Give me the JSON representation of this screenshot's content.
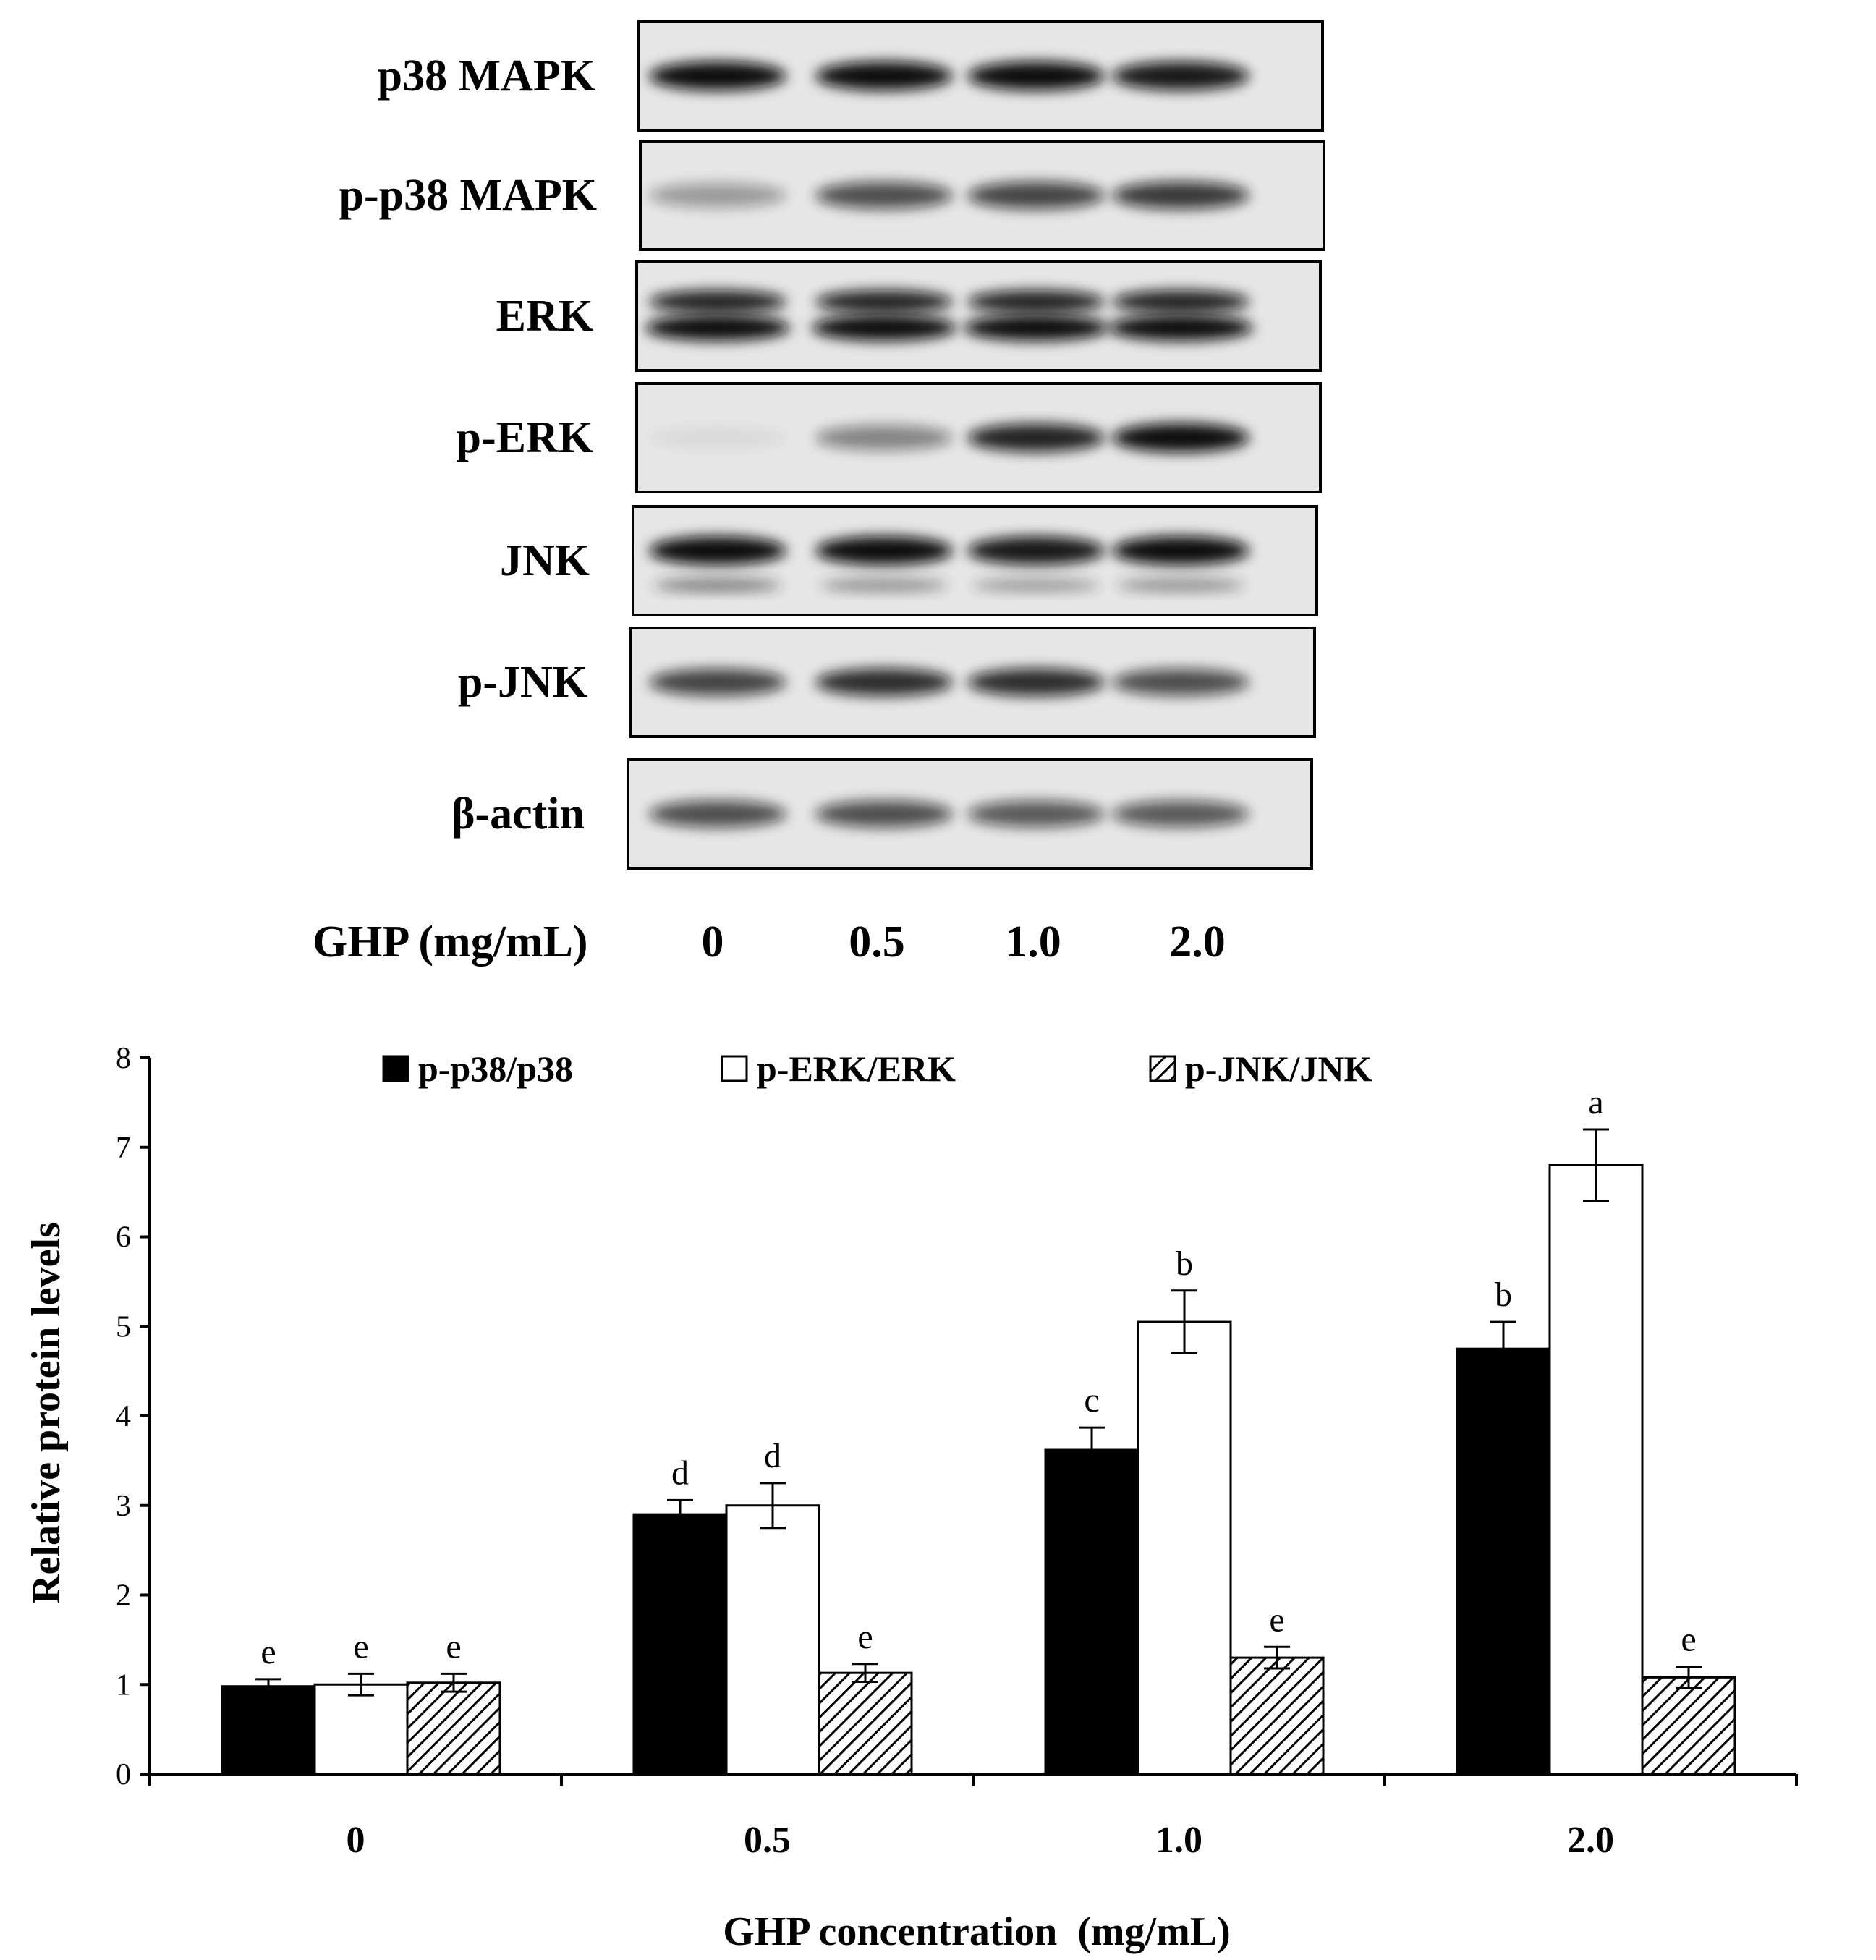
{
  "blot": {
    "rows": [
      {
        "label": "p38 MAPK",
        "bands": [
          1.0,
          1.0,
          1.0,
          0.95
        ],
        "double": false,
        "lower": null
      },
      {
        "label": "p-p38 MAPK",
        "bands": [
          0.35,
          0.7,
          0.75,
          0.8
        ],
        "double": false,
        "lower": null
      },
      {
        "label": "ERK",
        "bands": [
          1.0,
          1.0,
          1.0,
          1.0
        ],
        "double": true,
        "lower": null
      },
      {
        "label": "p-ERK",
        "bands": [
          0.05,
          0.45,
          0.9,
          1.0
        ],
        "double": false,
        "lower": null
      },
      {
        "label": "JNK",
        "bands": [
          1.0,
          1.0,
          0.95,
          1.0
        ],
        "double": false,
        "lower": [
          0.55,
          0.45,
          0.4,
          0.45
        ]
      },
      {
        "label": "p-JNK",
        "bands": [
          0.75,
          0.85,
          0.85,
          0.7
        ],
        "double": false,
        "lower": null
      },
      {
        "label": "β-actin",
        "bands": [
          0.7,
          0.7,
          0.65,
          0.65
        ],
        "double": false,
        "lower": null
      }
    ],
    "lane_header": "GHP (mg/mL)",
    "lanes": [
      "0",
      "0.5",
      "1.0",
      "2.0"
    ]
  },
  "chart_data": {
    "type": "bar",
    "categories": [
      "0",
      "0.5",
      "1.0",
      "2.0"
    ],
    "xlabel": "GHP concentration  (mg/mL)",
    "ylabel": "Relative protein levels",
    "ylim": [
      0,
      8
    ],
    "yticks": [
      "0",
      "1",
      "2",
      "3",
      "4",
      "5",
      "6",
      "7",
      "8"
    ],
    "legend_position": "top",
    "series": [
      {
        "name": "p-p38/p38",
        "fill": "#000000",
        "pattern": "solid",
        "values": [
          0.98,
          2.9,
          3.62,
          4.75
        ],
        "errors": [
          0.08,
          0.16,
          0.25,
          0.3
        ],
        "letters": [
          "e",
          "d",
          "c",
          "b"
        ]
      },
      {
        "name": "p-ERK/ERK",
        "fill": "#ffffff",
        "pattern": "open",
        "values": [
          1.0,
          3.0,
          5.05,
          6.8
        ],
        "errors": [
          0.12,
          0.25,
          0.35,
          0.4
        ],
        "letters": [
          "e",
          "d",
          "b",
          "a"
        ]
      },
      {
        "name": "p-JNK/JNK",
        "fill": "#ffffff",
        "pattern": "hatched",
        "values": [
          1.02,
          1.13,
          1.3,
          1.08
        ],
        "errors": [
          0.1,
          0.1,
          0.12,
          0.12
        ],
        "letters": [
          "e",
          "e",
          "e",
          "e"
        ]
      }
    ]
  }
}
